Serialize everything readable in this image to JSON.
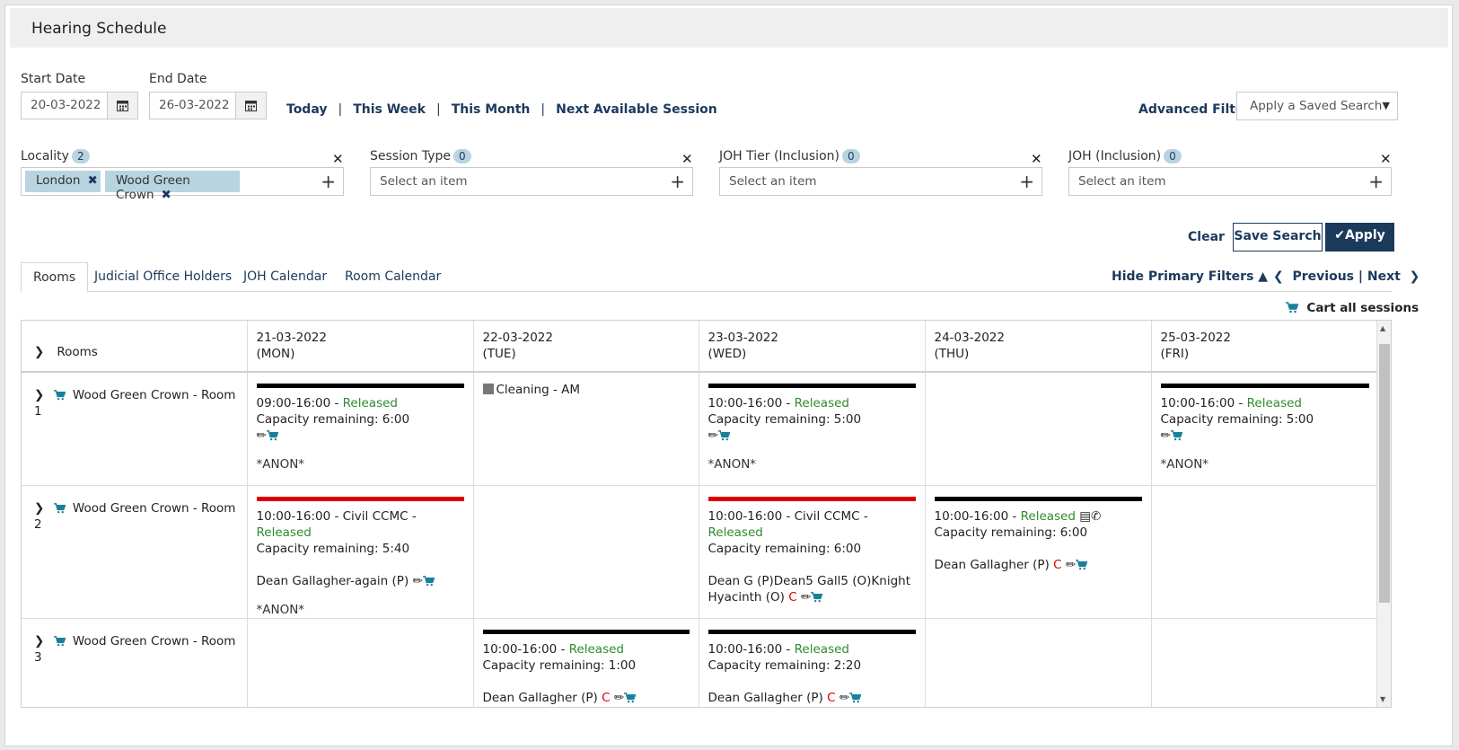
{
  "page": {
    "title": "Hearing Schedule"
  },
  "dates": {
    "start_label": "Start Date",
    "start_value": "20-03-2022",
    "end_label": "End Date",
    "end_value": "26-03-2022"
  },
  "quick_links": {
    "today": "Today",
    "this_week": "This Week",
    "this_month": "This Month",
    "next_available": "Next Available Session",
    "separator": "|"
  },
  "advanced_filter": "Advanced Filter",
  "saved_search": {
    "value": "Apply a Saved Search"
  },
  "filters": {
    "locality": {
      "label": "Locality",
      "count": "2",
      "chips": [
        "London",
        "Wood Green Crown"
      ]
    },
    "session_type": {
      "label": "Session Type",
      "count": "0",
      "placeholder": "Select an item"
    },
    "joh_tier": {
      "label": "JOH Tier (Inclusion)",
      "count": "0",
      "placeholder": "Select an item"
    },
    "joh": {
      "label": "JOH (Inclusion)",
      "count": "0",
      "placeholder": "Select an item"
    }
  },
  "actions": {
    "clear": "Clear",
    "save_search": "Save Search",
    "apply": "Apply"
  },
  "tabs": [
    "Rooms",
    "Judicial Office Holders",
    "JOH Calendar",
    "Room Calendar"
  ],
  "hide_filters": "Hide Primary Filters",
  "pager": {
    "previous": "Previous",
    "separator": "|",
    "next": "Next"
  },
  "cart_all": "Cart all sessions",
  "grid": {
    "rooms_header": "Rooms",
    "days": [
      {
        "date": "21-03-2022",
        "dow": "(MON)"
      },
      {
        "date": "22-03-2022",
        "dow": "(TUE)"
      },
      {
        "date": "23-03-2022",
        "dow": "(WED)"
      },
      {
        "date": "24-03-2022",
        "dow": "(THU)"
      },
      {
        "date": "25-03-2022",
        "dow": "(FRI)"
      }
    ],
    "rooms": [
      {
        "name": "Wood Green Crown - Room 1"
      },
      {
        "name": "Wood Green Crown - Room 2"
      },
      {
        "name": "Wood Green Crown - Room 3"
      }
    ],
    "r1": {
      "mon": {
        "time": "09:00-16:00",
        "status": "Released",
        "capacity": "Capacity remaining: 6:00",
        "note": "*ANON*"
      },
      "tue": {
        "label": "Cleaning - AM"
      },
      "wed": {
        "time": "10:00-16:00",
        "status": "Released",
        "capacity": "Capacity remaining: 5:00",
        "note": "*ANON*"
      },
      "fri": {
        "time": "10:00-16:00",
        "status": "Released",
        "capacity": "Capacity remaining: 5:00",
        "note": "*ANON*"
      }
    },
    "r2": {
      "mon": {
        "time": "10:00-16:00 - Civil CCMC",
        "status": "Released",
        "capacity": "Capacity remaining: 5:40",
        "judge": "Dean Gallagher-again (P)",
        "note": "*ANON*"
      },
      "wed": {
        "time": "10:00-16:00 - Civil CCMC",
        "status": "Released",
        "capacity": "Capacity remaining: 6:00",
        "judge1": "Dean G (P)Dean5 Gall5 (O)Knight",
        "judge2": "Hyacinth (O)",
        "flag": "C"
      },
      "thu": {
        "time": "10:00-16:00",
        "status": "Released",
        "capacity": "Capacity remaining: 6:00",
        "judge": "Dean Gallagher (P)",
        "flag": "C"
      }
    },
    "r3": {
      "tue": {
        "time": "10:00-16:00",
        "status": "Released",
        "capacity": "Capacity remaining: 1:00",
        "judge": "Dean Gallagher (P)",
        "flag": "C"
      },
      "wed": {
        "time": "10:00-16:00",
        "status": "Released",
        "capacity": "Capacity remaining: 2:20",
        "judge": "Dean Gallagher (P)",
        "flag": "C"
      }
    },
    "dash": " - "
  },
  "colors": {
    "navy": "#1b3a5c",
    "released": "#2e8b2e",
    "flag": "#e00000",
    "chip": "#b8d4e0",
    "cart": "#1a7f9a"
  }
}
